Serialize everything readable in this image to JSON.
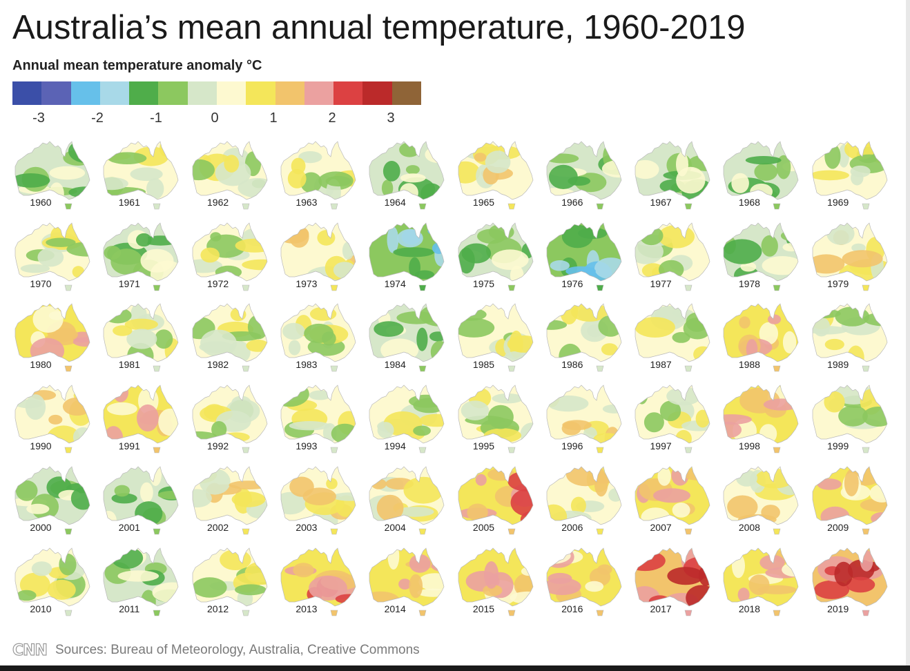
{
  "title": "Australia’s mean annual temperature, 1960-2019",
  "subtitle": "Annual mean temperature anomaly °C",
  "legend": {
    "colors": [
      "#3b4fa8",
      "#5b63b5",
      "#66c0ea",
      "#a8d9e8",
      "#4fad4a",
      "#8cc85f",
      "#d6e7c9",
      "#fdf9d0",
      "#f4e65a",
      "#f2c46c",
      "#eba1a0",
      "#dc4142",
      "#bb2a2a",
      "#8f6437"
    ],
    "ticks": [
      {
        "label": "-3",
        "value": -3
      },
      {
        "label": "-2",
        "value": -2
      },
      {
        "label": "-1",
        "value": -1
      },
      {
        "label": "0",
        "value": 0
      },
      {
        "label": "1",
        "value": 1
      },
      {
        "label": "2",
        "value": 2
      },
      {
        "label": "3",
        "value": 3
      }
    ]
  },
  "maps": [
    {
      "year": "1960",
      "level": -1,
      "tone": "green"
    },
    {
      "year": "1961",
      "level": 0,
      "tone": "mixed"
    },
    {
      "year": "1962",
      "level": 0,
      "tone": "mixed"
    },
    {
      "year": "1963",
      "level": 0,
      "tone": "mixed"
    },
    {
      "year": "1964",
      "level": -1,
      "tone": "green"
    },
    {
      "year": "1965",
      "level": 0,
      "tone": "yellow"
    },
    {
      "year": "1966",
      "level": -1,
      "tone": "green"
    },
    {
      "year": "1967",
      "level": -1,
      "tone": "green"
    },
    {
      "year": "1968",
      "level": -1,
      "tone": "green"
    },
    {
      "year": "1969",
      "level": 0,
      "tone": "mixed"
    },
    {
      "year": "1970",
      "level": 0,
      "tone": "mixed"
    },
    {
      "year": "1971",
      "level": -1,
      "tone": "green"
    },
    {
      "year": "1972",
      "level": 0,
      "tone": "mixed"
    },
    {
      "year": "1973",
      "level": 1,
      "tone": "yellow"
    },
    {
      "year": "1974",
      "level": -2,
      "tone": "blue"
    },
    {
      "year": "1975",
      "level": -1,
      "tone": "green"
    },
    {
      "year": "1976",
      "level": -2,
      "tone": "blue"
    },
    {
      "year": "1977",
      "level": 0,
      "tone": "mixed"
    },
    {
      "year": "1978",
      "level": -1,
      "tone": "green"
    },
    {
      "year": "1979",
      "level": 0,
      "tone": "yellow"
    },
    {
      "year": "1980",
      "level": 1,
      "tone": "orange"
    },
    {
      "year": "1981",
      "level": 0,
      "tone": "mixed"
    },
    {
      "year": "1982",
      "level": 0,
      "tone": "mixed"
    },
    {
      "year": "1983",
      "level": 0,
      "tone": "mixed"
    },
    {
      "year": "1984",
      "level": -1,
      "tone": "green"
    },
    {
      "year": "1985",
      "level": 0,
      "tone": "mixed"
    },
    {
      "year": "1986",
      "level": 0,
      "tone": "mixed"
    },
    {
      "year": "1987",
      "level": 0,
      "tone": "mixed"
    },
    {
      "year": "1988",
      "level": 1,
      "tone": "orange"
    },
    {
      "year": "1989",
      "level": 0,
      "tone": "mixed"
    },
    {
      "year": "1990",
      "level": 1,
      "tone": "yellow"
    },
    {
      "year": "1991",
      "level": 1,
      "tone": "orange"
    },
    {
      "year": "1992",
      "level": 0,
      "tone": "mixed"
    },
    {
      "year": "1993",
      "level": 0,
      "tone": "mixed"
    },
    {
      "year": "1994",
      "level": 0,
      "tone": "mixed"
    },
    {
      "year": "1995",
      "level": 0,
      "tone": "mixed"
    },
    {
      "year": "1996",
      "level": 1,
      "tone": "yellow"
    },
    {
      "year": "1997",
      "level": 0,
      "tone": "mixed"
    },
    {
      "year": "1998",
      "level": 1,
      "tone": "orange"
    },
    {
      "year": "1999",
      "level": 0,
      "tone": "mixed"
    },
    {
      "year": "2000",
      "level": -1,
      "tone": "green"
    },
    {
      "year": "2001",
      "level": -1,
      "tone": "green"
    },
    {
      "year": "2002",
      "level": 1,
      "tone": "yellow"
    },
    {
      "year": "2003",
      "level": 1,
      "tone": "yellow"
    },
    {
      "year": "2004",
      "level": 1,
      "tone": "yellow"
    },
    {
      "year": "2005",
      "level": 2,
      "tone": "pink"
    },
    {
      "year": "2006",
      "level": 1,
      "tone": "yellow"
    },
    {
      "year": "2007",
      "level": 1,
      "tone": "orange"
    },
    {
      "year": "2008",
      "level": 1,
      "tone": "yellow"
    },
    {
      "year": "2009",
      "level": 1,
      "tone": "orange"
    },
    {
      "year": "2010",
      "level": 0,
      "tone": "mixed"
    },
    {
      "year": "2011",
      "level": -1,
      "tone": "green"
    },
    {
      "year": "2012",
      "level": 0,
      "tone": "mixed"
    },
    {
      "year": "2013",
      "level": 2,
      "tone": "pink"
    },
    {
      "year": "2014",
      "level": 1,
      "tone": "orange"
    },
    {
      "year": "2015",
      "level": 1,
      "tone": "orange"
    },
    {
      "year": "2016",
      "level": 1,
      "tone": "orange"
    },
    {
      "year": "2017",
      "level": 2,
      "tone": "red"
    },
    {
      "year": "2018",
      "level": 1,
      "tone": "orange"
    },
    {
      "year": "2019",
      "level": 3,
      "tone": "red"
    }
  ],
  "footer": {
    "logo": "CNN",
    "sources": "Sources: Bureau of Meteorology, Australia, Creative Commons"
  }
}
